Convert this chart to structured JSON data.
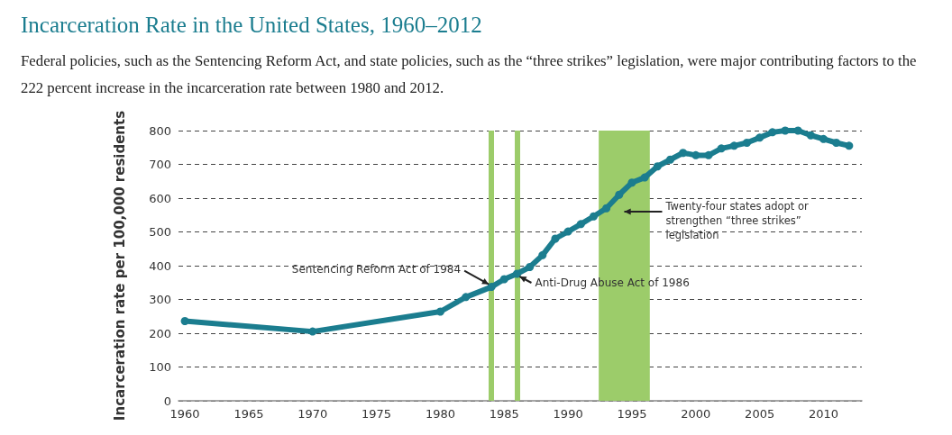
{
  "chart_data": {
    "type": "line",
    "title": "Incarceration Rate in the United States, 1960–2012",
    "subtitle": "Federal policies, such as the Sentencing Reform Act, and state policies, such as the “three strikes” legislation, were major contributing factors to the 222 percent increase in the incarceration rate between 1980 and 2012.",
    "ylabel": "Incarceration rate per 100,000 residents",
    "x": [
      1960,
      1970,
      1980,
      1982,
      1984,
      1985,
      1986,
      1987,
      1988,
      1989,
      1990,
      1991,
      1992,
      1993,
      1994,
      1995,
      1996,
      1997,
      1998,
      1999,
      2000,
      2001,
      2002,
      2003,
      2004,
      2005,
      2006,
      2007,
      2008,
      2009,
      2010,
      2011,
      2012
    ],
    "series": [
      {
        "color": "#1b7d8f",
        "values": [
          236,
          205,
          264,
          307,
          337,
          360,
          376,
          396,
          431,
          480,
          501,
          523,
          546,
          570,
          610,
          646,
          661,
          694,
          714,
          734,
          727,
          727,
          747,
          755,
          764,
          779,
          795,
          800,
          800,
          786,
          775,
          764,
          755
        ]
      }
    ],
    "xlim": [
      1959.5,
      2013
    ],
    "xticks": [
      1960,
      1965,
      1970,
      1975,
      1980,
      1985,
      1990,
      1995,
      2000,
      2005,
      2010
    ],
    "ylim": [
      0,
      800
    ],
    "yticks": [
      0,
      100,
      200,
      300,
      400,
      500,
      600,
      700,
      800
    ],
    "grid": "y",
    "marker": "circle",
    "line_style": "solid",
    "ref_lines": [
      {
        "axis": "x",
        "value": 1984,
        "color": "#9ccc6a"
      },
      {
        "axis": "x",
        "value": 1986,
        "color": "#9ccc6a"
      }
    ],
    "bands": [
      {
        "axis": "x",
        "from": 1992.4,
        "to": 1996.4,
        "color": "#9ccc6a"
      }
    ],
    "annotations": [
      {
        "text": "Sentencing Reform Act of 1984",
        "x": 1984,
        "y": 337
      },
      {
        "text": "Anti-Drug Abuse Act of 1986",
        "x": 1986,
        "y": 376
      },
      "Twenty-four states adopt or strengthen “three strikes” legislation"
    ]
  }
}
